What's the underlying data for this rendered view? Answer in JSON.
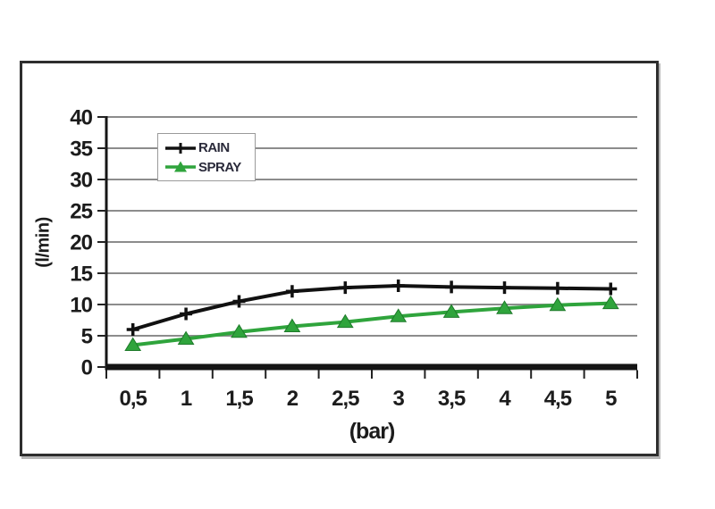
{
  "chart_data": {
    "type": "line",
    "categories": [
      "0,5",
      "1",
      "1,5",
      "2",
      "2,5",
      "3",
      "3,5",
      "4",
      "4,5",
      "5"
    ],
    "series": [
      {
        "name": "RAIN",
        "color": "#111111",
        "marker": "plus",
        "values": [
          6,
          8.5,
          10.5,
          12.1,
          12.7,
          13,
          12.8,
          12.7,
          12.6,
          12.5
        ]
      },
      {
        "name": "SPRAY",
        "color": "#2fa43c",
        "marker": "triangle",
        "marker_edge_color": "#1e7a2a",
        "values": [
          3.5,
          4.5,
          5.6,
          6.5,
          7.2,
          8.1,
          8.8,
          9.4,
          9.9,
          10.2
        ]
      }
    ],
    "xlabel": "(bar)",
    "ylabel": "(l/min)",
    "ylim": [
      0,
      40
    ],
    "ytick_step": 5,
    "grid": "horizontal",
    "gridline_color": "#8c8c8c",
    "axis_color": "#151515",
    "tick_color": "#222222",
    "legend_position": "top-left-inside",
    "background": "#ffffff"
  }
}
